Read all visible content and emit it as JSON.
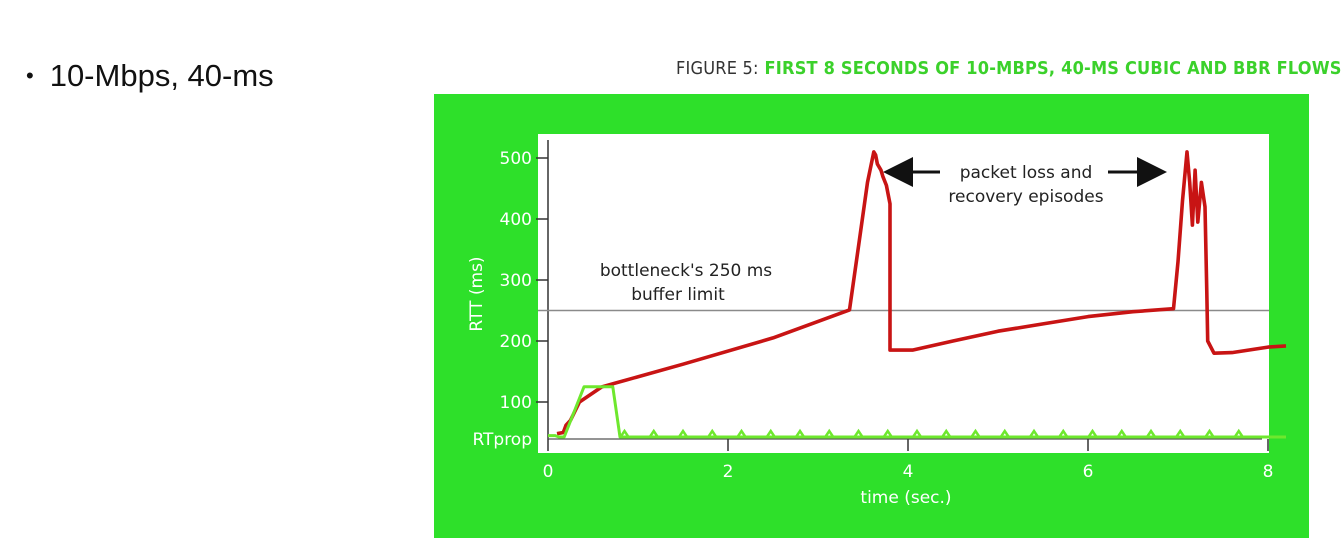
{
  "slide": {
    "bullet": "10-Mbps, 40-ms"
  },
  "figure": {
    "title_prefix": "FIGURE 5:",
    "title_main": "FIRST 8 SECONDS OF 10-MBPS, 40-MS CUBIC AND BBR FLOWS",
    "frame_color": "#2ee02a",
    "cubic_color": "#c81414",
    "bbr_color": "#6ee82e"
  },
  "chart_data": {
    "type": "line",
    "xlabel": "time (sec.)",
    "ylabel": "RTT (ms)",
    "xlim": [
      0,
      8
    ],
    "ylim": [
      40,
      520
    ],
    "x_ticks": [
      0,
      2,
      4,
      6,
      8
    ],
    "y_ticks": [
      {
        "value": 40,
        "label": "RTprop"
      },
      {
        "value": 100,
        "label": "100"
      },
      {
        "value": 200,
        "label": "200"
      },
      {
        "value": 300,
        "label": "300"
      },
      {
        "value": 400,
        "label": "400"
      },
      {
        "value": 500,
        "label": "500"
      }
    ],
    "reference_line": {
      "value": 250,
      "label_line1": "bottleneck's 250 ms",
      "label_line2": "buffer limit"
    },
    "annotation": {
      "line1": "packet loss and",
      "line2": "recovery episodes"
    },
    "series": [
      {
        "points": [
          [
            0.1,
            48
          ],
          [
            0.17,
            50
          ],
          [
            0.2,
            62
          ],
          [
            0.25,
            70
          ],
          [
            0.3,
            85
          ],
          [
            0.35,
            100
          ],
          [
            0.6,
            125
          ],
          [
            1.5,
            162
          ],
          [
            2.5,
            205
          ],
          [
            3.35,
            251
          ],
          [
            3.45,
            355
          ],
          [
            3.55,
            460
          ],
          [
            3.62,
            510
          ],
          [
            3.64,
            505
          ],
          [
            3.66,
            490
          ],
          [
            3.7,
            480
          ],
          [
            3.72,
            470
          ],
          [
            3.76,
            455
          ],
          [
            3.78,
            440
          ],
          [
            3.8,
            425
          ],
          [
            3.8,
            185
          ],
          [
            4.05,
            185
          ],
          [
            4.5,
            200
          ],
          [
            5.0,
            216
          ],
          [
            5.5,
            228
          ],
          [
            6.0,
            240
          ],
          [
            6.5,
            248
          ],
          [
            6.95,
            253
          ],
          [
            7.0,
            330
          ],
          [
            7.05,
            430
          ],
          [
            7.1,
            510
          ],
          [
            7.13,
            460
          ],
          [
            7.16,
            390
          ],
          [
            7.19,
            480
          ],
          [
            7.22,
            395
          ],
          [
            7.26,
            460
          ],
          [
            7.3,
            420
          ],
          [
            7.32,
            280
          ],
          [
            7.33,
            200
          ],
          [
            7.4,
            180
          ],
          [
            7.6,
            181
          ],
          [
            8.0,
            190
          ],
          [
            8.2,
            192
          ]
        ]
      },
      {
        "points": [
          [
            0.0,
            45
          ],
          [
            0.08,
            45
          ],
          [
            0.12,
            42
          ],
          [
            0.18,
            42
          ],
          [
            0.4,
            125
          ],
          [
            0.72,
            125
          ],
          [
            0.8,
            42
          ],
          [
            8.2,
            42
          ]
        ]
      }
    ]
  }
}
